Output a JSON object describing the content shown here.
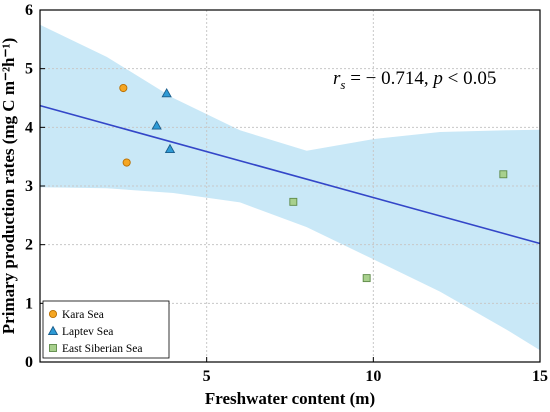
{
  "chart_data": {
    "type": "scatter",
    "xlabel": "Freshwater content (m)",
    "ylabel": "Primary production rates (mg C m⁻²h⁻¹)",
    "xlim": [
      0,
      15
    ],
    "ylim": [
      0,
      6
    ],
    "xticks": [
      "5",
      "10",
      "15"
    ],
    "yticks": [
      "0",
      "1",
      "2",
      "3",
      "4",
      "5",
      "6"
    ],
    "grid": true,
    "annotation": {
      "r_symbol": "r",
      "r_sub": "s",
      "value_text": " = − 0.714, ",
      "p_symbol": "p",
      "p_text": " < 0.05"
    },
    "legend_placement": "bottom-left",
    "series": [
      {
        "name": "Kara Sea",
        "marker": "circle",
        "color": "#F5A623",
        "edge": "#B86E00",
        "points": [
          {
            "x": 2.5,
            "y": 4.67
          },
          {
            "x": 2.6,
            "y": 3.4
          }
        ]
      },
      {
        "name": "Laptev Sea",
        "marker": "triangle",
        "color": "#2E9BD6",
        "edge": "#1A5C8A",
        "points": [
          {
            "x": 3.8,
            "y": 4.58
          },
          {
            "x": 3.5,
            "y": 4.03
          },
          {
            "x": 3.9,
            "y": 3.63
          }
        ]
      },
      {
        "name": "East Siberian Sea",
        "marker": "square",
        "color": "#A8D08D",
        "edge": "#5E8A48",
        "points": [
          {
            "x": 7.6,
            "y": 2.73
          },
          {
            "x": 9.8,
            "y": 1.43
          },
          {
            "x": 13.9,
            "y": 3.2
          }
        ]
      }
    ],
    "regression": {
      "x": [
        0,
        15
      ],
      "y": [
        4.37,
        2.02
      ],
      "color": "#3346C8"
    },
    "confidence_band": {
      "color": "#C9E8F7",
      "x": [
        0,
        2,
        4,
        6,
        8,
        10,
        12,
        14,
        15
      ],
      "upper": [
        5.75,
        5.2,
        4.5,
        3.95,
        3.6,
        3.8,
        3.92,
        3.95,
        3.96
      ],
      "lower": [
        2.98,
        2.96,
        2.88,
        2.72,
        2.3,
        1.75,
        1.2,
        0.55,
        0.2
      ]
    }
  }
}
